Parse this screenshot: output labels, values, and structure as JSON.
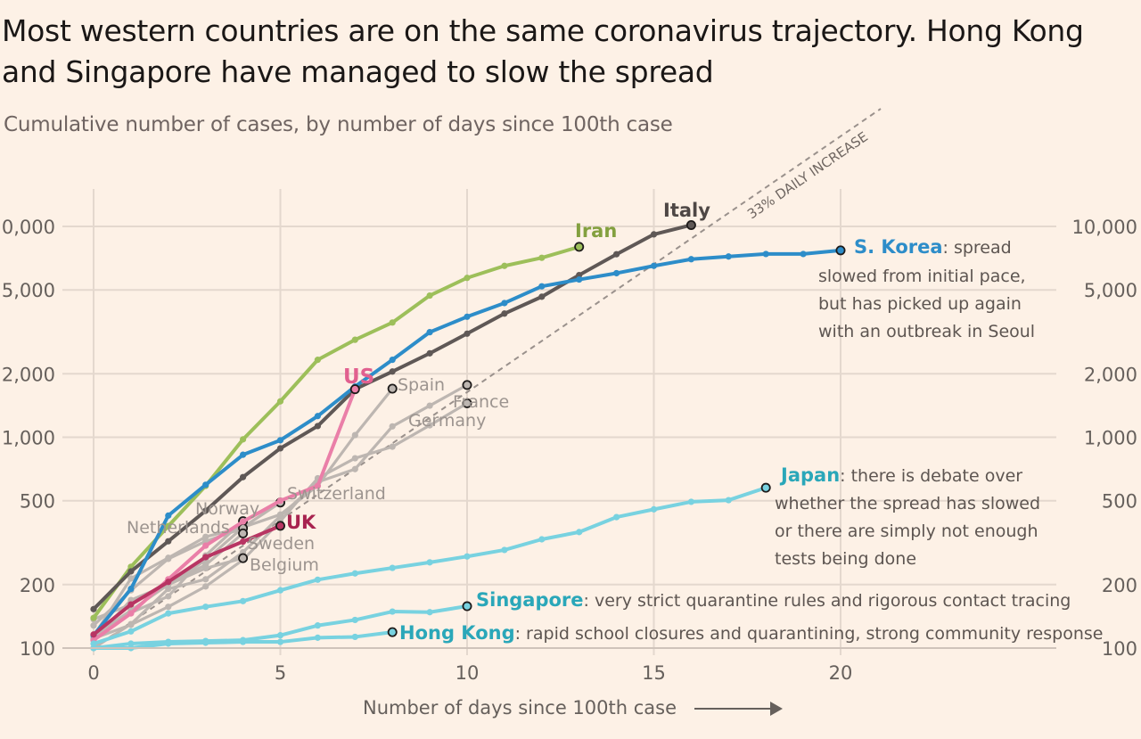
{
  "title": "Most western countries are on the same coronavirus trajectory. Hong Kong and Singapore have managed to slow the spread",
  "subtitle": "Cumulative number of cases, by number of days since 100th case",
  "chart_data": {
    "type": "line",
    "title": "Most western countries are on the same coronavirus trajectory. Hong Kong and Singapore have managed to slow the spread",
    "subtitle": "Cumulative number of cases, by number of days since 100th case",
    "xlabel": "Number of days since 100th case",
    "ylabel": "",
    "yscale": "log",
    "xlim": [
      0,
      22
    ],
    "ylim": [
      100,
      14000
    ],
    "x_ticks": [
      0,
      5,
      10,
      15,
      20
    ],
    "x_tick_labels": [
      "0",
      "5",
      "10",
      "15",
      "20"
    ],
    "y_ticks": [
      100,
      200,
      500,
      1000,
      2000,
      5000,
      10000
    ],
    "y_tick_labels": [
      "100",
      "200",
      "500",
      "1,000",
      "2,000",
      "5,000",
      "10,000"
    ],
    "grid": true,
    "reference_line": {
      "label": "33% DAILY INCREASE",
      "start": 100,
      "daily_growth": 0.33,
      "style": "dashed"
    },
    "series": [
      {
        "name": "Iran",
        "color": "#9dbf5a",
        "label_color": "#83a03f",
        "highlight": true,
        "values": [
          139,
          243,
          379,
          588,
          977,
          1480,
          2330,
          2900,
          3500,
          4700,
          5700,
          6500,
          7100,
          8000
        ]
      },
      {
        "name": "Italy",
        "color": "#5f5856",
        "label_color": "#4e4745",
        "highlight": true,
        "values": [
          153,
          231,
          321,
          448,
          647,
          886,
          1130,
          1690,
          2050,
          2500,
          3100,
          3860,
          4640,
          5880,
          7380,
          9170,
          10150
        ]
      },
      {
        "name": "S. Korea",
        "color": "#2d8dc9",
        "label_color": "#2d8dc9",
        "highlight": true,
        "note": ": spread slowed from initial pace, but has picked up again with an outbreak in Seoul",
        "values": [
          115,
          191,
          425,
          595,
          826,
          968,
          1260,
          1740,
          2330,
          3150,
          3730,
          4330,
          5200,
          5600,
          6000,
          6500,
          6990,
          7200,
          7400,
          7400,
          7700
        ]
      },
      {
        "name": "US",
        "color": "#ea7fa8",
        "label_color": "#e1608f",
        "highlight": true,
        "values": [
          109,
          146,
          212,
          306,
          398,
          500,
          588,
          1690
        ]
      },
      {
        "name": "UK",
        "color": "#b83563",
        "label_color": "#a8234f",
        "highlight": true,
        "values": [
          116,
          161,
          206,
          270,
          320,
          380
        ]
      },
      {
        "name": "Japan",
        "color": "#78d2e0",
        "label_color": "#2aa7b9",
        "highlight": true,
        "note": ": there is debate over whether the spread has slowed or there are simply not enough tests being done",
        "values": [
          105,
          120,
          146,
          157,
          167,
          188,
          211,
          226,
          240,
          255,
          272,
          292,
          328,
          355,
          418,
          455,
          494,
          503,
          576
        ]
      },
      {
        "name": "Singapore",
        "color": "#78d2e0",
        "label_color": "#2aa7b9",
        "highlight": true,
        "note": ": very strict quarantine rules and rigorous contact tracing",
        "values": [
          100,
          105,
          107,
          108,
          109,
          115,
          128,
          136,
          149,
          148,
          158
        ]
      },
      {
        "name": "Hong Kong",
        "color": "#78d2e0",
        "label_color": "#2aa7b9",
        "highlight": true,
        "note": ": rapid school closures and quarantining, strong community response",
        "values": [
          100,
          100,
          105,
          106,
          107,
          107,
          112,
          113,
          119
        ]
      },
      {
        "name": "Spain",
        "color": "#bdb6b1",
        "highlight": false,
        "values": [
          114,
          151,
          200,
          261,
          374,
          430,
          589,
          1024,
          1700
        ]
      },
      {
        "name": "France",
        "color": "#bdb6b1",
        "highlight": false,
        "values": [
          100,
          130,
          191,
          212,
          285,
          423,
          613,
          706,
          1126,
          1412,
          1770
        ]
      },
      {
        "name": "Germany",
        "color": "#bdb6b1",
        "highlight": false,
        "values": [
          111,
          129,
          157,
          196,
          262,
          400,
          639,
          795,
          902,
          1139,
          1450
        ]
      },
      {
        "name": "Switzerland",
        "color": "#bdb6b1",
        "highlight": false,
        "values": [
          114,
          214,
          268,
          337,
          374,
          490
        ]
      },
      {
        "name": "Norway",
        "color": "#bdb6b1",
        "highlight": false,
        "values": [
          113,
          147,
          176,
          275,
          400
        ]
      },
      {
        "name": "Netherlands",
        "color": "#bdb6b1",
        "highlight": false,
        "values": [
          128,
          188,
          265,
          321,
          370
        ]
      },
      {
        "name": "Sweden",
        "color": "#bdb6b1",
        "highlight": false,
        "values": [
          137,
          161,
          203,
          248,
          350
        ]
      },
      {
        "name": "Belgium",
        "color": "#bdb6b1",
        "highlight": false,
        "values": [
          109,
          169,
          200,
          239,
          267
        ]
      }
    ]
  }
}
